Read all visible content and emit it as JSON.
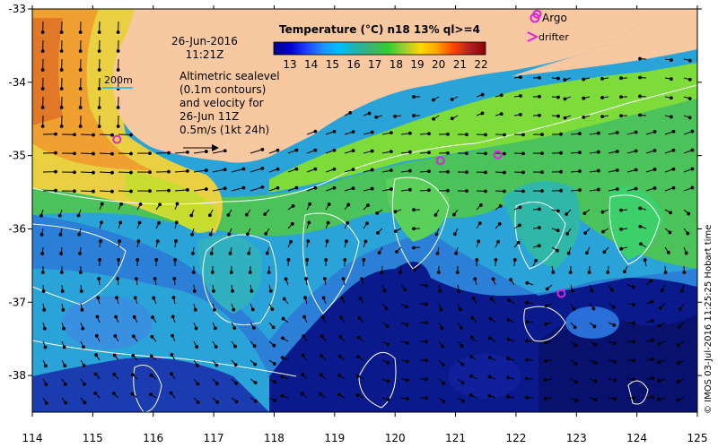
{
  "map": {
    "date": "26-Jun-2016",
    "time": "11:21Z",
    "scale_label": "200m",
    "sealevel_note": [
      "Altimetric sealevel",
      "(0.1m contours)",
      "and velocity for",
      "26-Jun 11Z",
      "0.5m/s (1kt 24h)"
    ],
    "credit": "© IMOS 03-Jul-2016 11:25:25 Hobart time",
    "legend": {
      "argo": "Argo",
      "drifter": "drifter"
    },
    "colors": {
      "land": "#f8c8a0",
      "argo": "#e020e0",
      "drifter": "#e020e0",
      "contour": "#ffffff",
      "arrow": "#000000",
      "scale_line": "#40c0e0"
    }
  },
  "axes": {
    "x_ticks": [
      "114",
      "115",
      "116",
      "117",
      "118",
      "119",
      "120",
      "121",
      "122",
      "123",
      "124",
      "125"
    ],
    "y_ticks": [
      "-33",
      "-34",
      "-35",
      "-36",
      "-37",
      "-38"
    ],
    "x_range": [
      114,
      125
    ],
    "y_range": [
      -38.5,
      -33
    ]
  },
  "colorbar": {
    "title": "Temperature (°C) n18 13% ql>=4",
    "ticks": [
      "13",
      "14",
      "15",
      "16",
      "17",
      "18",
      "19",
      "20",
      "21",
      "22"
    ],
    "stops": [
      "#00008b",
      "#0000cd",
      "#1e40ff",
      "#1e90ff",
      "#00bfff",
      "#20b2aa",
      "#3cb371",
      "#32cd32",
      "#9acd32",
      "#ffd700",
      "#ffa500",
      "#ff4500",
      "#b22222",
      "#8b0000"
    ]
  },
  "argo_floats": [
    {
      "lon": 115.4,
      "lat": -34.78
    },
    {
      "lon": 120.75,
      "lat": -35.07
    },
    {
      "lon": 121.7,
      "lat": -34.99
    },
    {
      "lon": 122.75,
      "lat": -36.88
    },
    {
      "lon": 122.35,
      "lat": -33.07
    }
  ]
}
